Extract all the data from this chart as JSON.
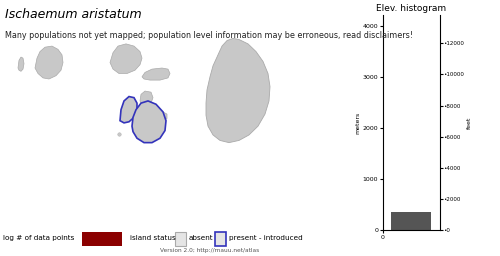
{
  "title": "Ischaemum aristatum",
  "subtitle": "Many populations not yet mapped; population level information may be erroneous, read disclaimers!",
  "hist_title": "Elev. histogram",
  "ylabel_left": "meters",
  "ylabel_right": "feet",
  "legend_text1": "log # of data points",
  "legend_text2": "island status",
  "legend_absent": "absent",
  "legend_present": "present - introduced",
  "version_text": "Version 2.0; http://mauu.net/atlas",
  "dark_red": "#8B0000",
  "blue": "#3333BB",
  "island_fill": "#C8C8C8",
  "island_edge": "#AAAAAA",
  "hist_bar_color": "#555555",
  "background_color": "#FFFFFF",
  "title_fontsize": 9,
  "subtitle_fontsize": 5.8,
  "hist_yticks_m": [
    0,
    1000,
    2000,
    3000,
    4000
  ],
  "hist_yticks_ft": [
    0,
    2000,
    4000,
    6000,
    8000,
    10000,
    12000
  ],
  "map_xlim": [
    0,
    370
  ],
  "map_ylim": [
    0,
    210
  ]
}
